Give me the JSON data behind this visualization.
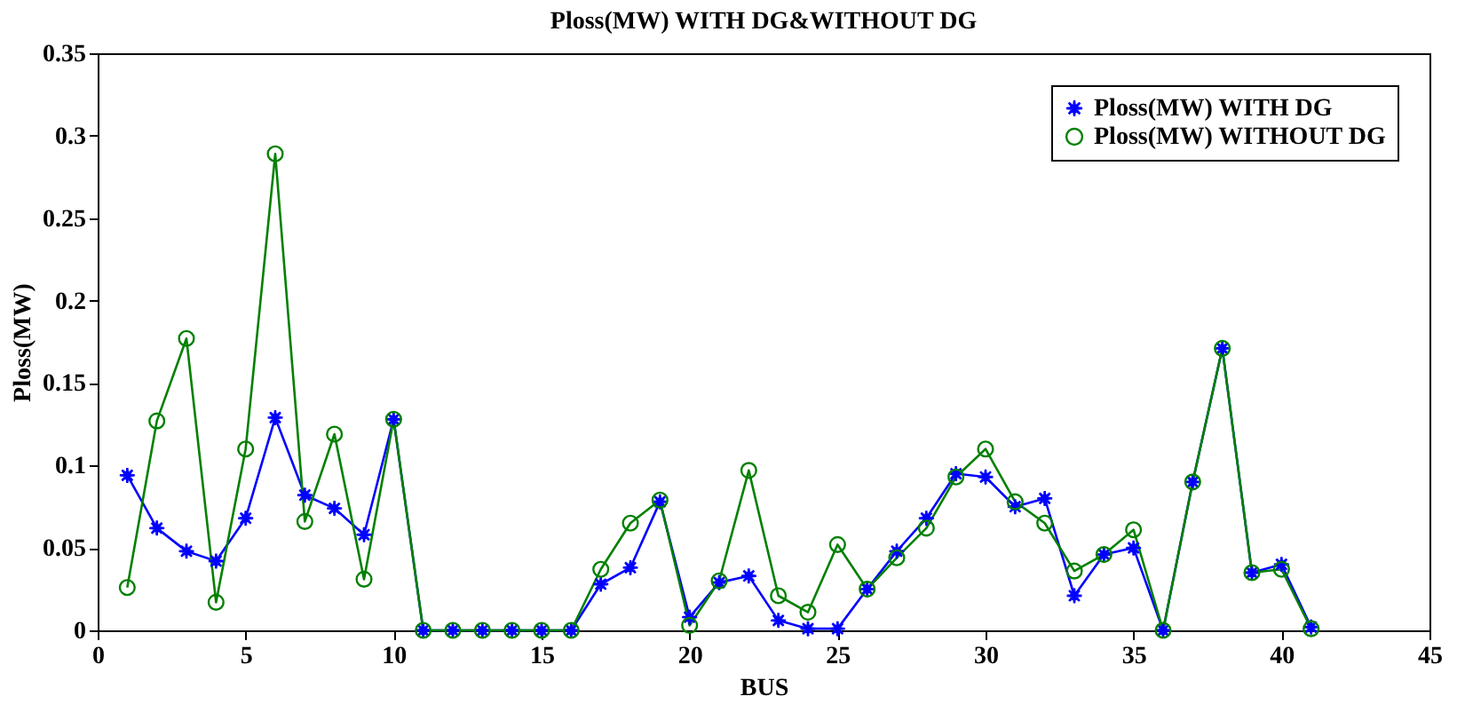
{
  "chart_data": {
    "type": "line",
    "title": "Ploss(MW) WITH DG&WITHOUT DG",
    "xlabel": "BUS",
    "ylabel": "Ploss(MW)",
    "x": [
      1,
      2,
      3,
      4,
      5,
      6,
      7,
      8,
      9,
      10,
      11,
      12,
      13,
      14,
      15,
      16,
      17,
      18,
      19,
      20,
      21,
      22,
      23,
      24,
      25,
      26,
      27,
      28,
      29,
      30,
      31,
      32,
      33,
      34,
      35,
      36,
      37,
      38,
      39,
      40,
      41
    ],
    "series": [
      {
        "name": "Ploss(MW) WITH DG",
        "color": "#0000ff",
        "marker": "star",
        "values": [
          0.094,
          0.062,
          0.048,
          0.042,
          0.068,
          0.129,
          0.082,
          0.074,
          0.058,
          0.128,
          0,
          0,
          0,
          0,
          0,
          0,
          0.028,
          0.038,
          0.078,
          0.008,
          0.029,
          0.033,
          0.006,
          0.001,
          0.001,
          0.025,
          0.048,
          0.068,
          0.095,
          0.093,
          0.075,
          0.08,
          0.021,
          0.046,
          0.05,
          0,
          0.09,
          0.171,
          0.035,
          0.04,
          0.002
        ]
      },
      {
        "name": "Ploss(MW) WITHOUT DG",
        "color": "#008000",
        "marker": "circle",
        "values": [
          0.026,
          0.127,
          0.177,
          0.017,
          0.11,
          0.289,
          0.066,
          0.119,
          0.031,
          0.128,
          0,
          0,
          0,
          0,
          0,
          0,
          0.037,
          0.065,
          0.079,
          0.003,
          0.03,
          0.097,
          0.021,
          0.011,
          0.052,
          0.025,
          0.044,
          0.062,
          0.093,
          0.11,
          0.078,
          0.065,
          0.036,
          0.046,
          0.061,
          0,
          0.09,
          0.171,
          0.035,
          0.037,
          0.001
        ]
      }
    ],
    "xlim": [
      0,
      45
    ],
    "xticks": [
      0,
      5,
      10,
      15,
      20,
      25,
      30,
      35,
      40,
      45
    ],
    "ylim": [
      0,
      0.35
    ],
    "yticks": [
      0,
      0.05,
      0.1,
      0.15,
      0.2,
      0.25,
      0.3,
      0.35
    ],
    "grid": false,
    "legend": "top right",
    "line_style": "solid"
  }
}
